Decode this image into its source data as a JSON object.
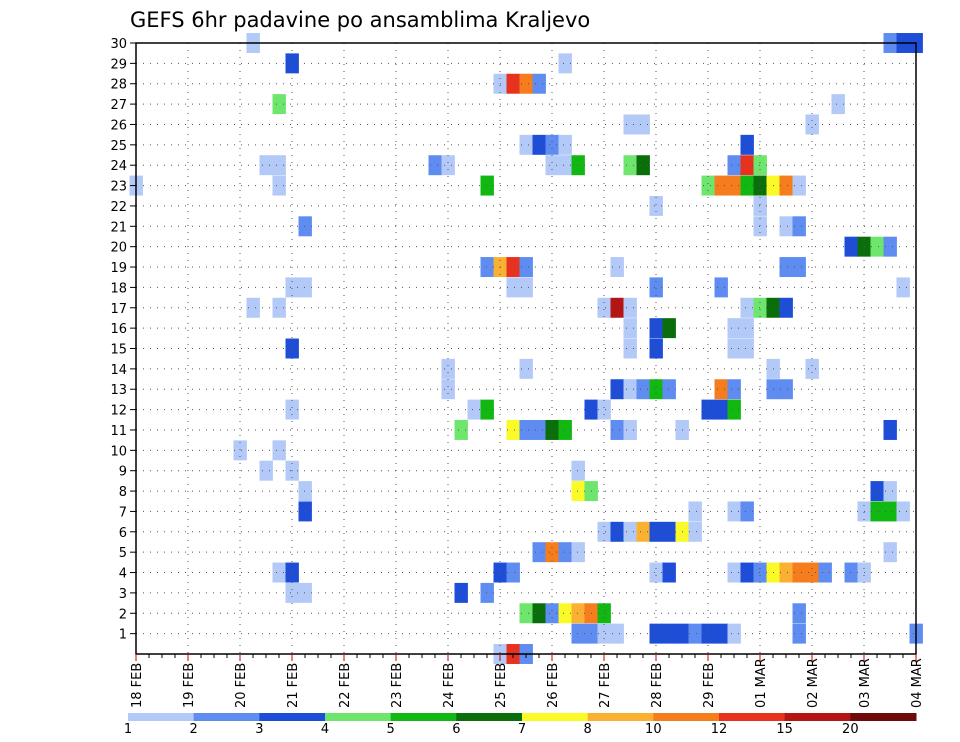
{
  "chart_data": {
    "type": "heatmap",
    "title": "GEFS 6hr padavine po ansamblima Kraljevo",
    "xlabel": "",
    "ylabel": "",
    "x_tick_labels": [
      "18 FEB",
      "19 FEB",
      "20 FEB",
      "21 FEB",
      "22 FEB",
      "23 FEB",
      "24 FEB",
      "25 FEB",
      "26 FEB",
      "27 FEB",
      "28 FEB",
      "29 FEB",
      "01 MAR",
      "02 MAR",
      "03 MAR",
      "04 MAR"
    ],
    "y_tick_labels": [
      "1",
      "2",
      "3",
      "4",
      "5",
      "6",
      "7",
      "8",
      "9",
      "10",
      "11",
      "12",
      "13",
      "14",
      "15",
      "16",
      "17",
      "18",
      "19",
      "20",
      "21",
      "22",
      "23",
      "24",
      "25",
      "26",
      "27",
      "28",
      "29",
      "30"
    ],
    "x_range_steps": [
      0,
      60
    ],
    "y_range": [
      0,
      30
    ],
    "grid": true,
    "colorbar": {
      "tick_labels": [
        "1",
        "2",
        "3",
        "4",
        "5",
        "6",
        "7",
        "8",
        "10",
        "12",
        "15",
        "20"
      ],
      "colors": [
        "#b3c9f7",
        "#5f8cf0",
        "#1e4ed8",
        "#6ee66e",
        "#12b812",
        "#0a6e0a",
        "#fafa28",
        "#fab132",
        "#f57d1e",
        "#e8321e",
        "#b41414",
        "#6e0a0a"
      ]
    },
    "member_cells": {
      "0": [
        [
          28,
          1
        ],
        [
          29,
          10
        ],
        [
          30,
          2
        ]
      ],
      "1": [
        [
          34,
          2
        ],
        [
          35,
          2
        ],
        [
          36,
          1
        ],
        [
          37,
          1
        ],
        [
          40,
          3
        ],
        [
          41,
          3
        ],
        [
          42,
          3
        ],
        [
          43,
          2
        ],
        [
          44,
          3
        ],
        [
          45,
          3
        ],
        [
          46,
          1
        ],
        [
          51,
          2
        ],
        [
          60,
          2
        ]
      ],
      "2": [
        [
          30,
          4
        ],
        [
          31,
          6
        ],
        [
          32,
          2
        ],
        [
          33,
          7
        ],
        [
          34,
          8
        ],
        [
          35,
          9
        ],
        [
          36,
          5
        ],
        [
          51,
          2
        ]
      ],
      "3": [
        [
          12,
          1
        ],
        [
          13,
          1
        ],
        [
          25,
          3
        ],
        [
          27,
          2
        ]
      ],
      "4": [
        [
          11,
          1
        ],
        [
          12,
          3
        ],
        [
          28,
          3
        ],
        [
          29,
          2
        ],
        [
          40,
          1
        ],
        [
          41,
          3
        ],
        [
          46,
          1
        ],
        [
          47,
          3
        ],
        [
          48,
          2
        ],
        [
          49,
          7
        ],
        [
          50,
          8
        ],
        [
          51,
          9
        ],
        [
          52,
          9
        ],
        [
          53,
          2
        ],
        [
          55,
          2
        ],
        [
          56,
          1
        ]
      ],
      "5": [
        [
          31,
          2
        ],
        [
          32,
          9
        ],
        [
          33,
          2
        ],
        [
          34,
          1
        ],
        [
          58,
          1
        ]
      ],
      "6": [
        [
          36,
          1
        ],
        [
          37,
          3
        ],
        [
          38,
          1
        ],
        [
          39,
          8
        ],
        [
          40,
          3
        ],
        [
          41,
          3
        ],
        [
          42,
          7
        ],
        [
          43,
          1
        ]
      ],
      "7": [
        [
          13,
          3
        ],
        [
          43,
          1
        ],
        [
          46,
          1
        ],
        [
          47,
          2
        ],
        [
          56,
          1
        ],
        [
          57,
          5
        ],
        [
          58,
          5
        ],
        [
          59,
          1
        ]
      ],
      "8": [
        [
          13,
          1
        ],
        [
          34,
          7
        ],
        [
          35,
          4
        ],
        [
          57,
          3
        ],
        [
          58,
          1
        ]
      ],
      "9": [
        [
          10,
          1
        ],
        [
          12,
          1
        ],
        [
          34,
          1
        ]
      ],
      "10": [
        [
          8,
          1
        ],
        [
          11,
          1
        ]
      ],
      "11": [
        [
          25,
          4
        ],
        [
          29,
          7
        ],
        [
          30,
          2
        ],
        [
          31,
          2
        ],
        [
          32,
          6
        ],
        [
          33,
          5
        ],
        [
          37,
          2
        ],
        [
          38,
          1
        ],
        [
          42,
          1
        ],
        [
          58,
          3
        ]
      ],
      "12": [
        [
          12,
          1
        ],
        [
          26,
          1
        ],
        [
          27,
          5
        ],
        [
          35,
          3
        ],
        [
          36,
          1
        ],
        [
          44,
          3
        ],
        [
          45,
          3
        ],
        [
          46,
          5
        ]
      ],
      "13": [
        [
          24,
          1
        ],
        [
          37,
          3
        ],
        [
          38,
          1
        ],
        [
          39,
          2
        ],
        [
          40,
          5
        ],
        [
          41,
          2
        ],
        [
          45,
          9
        ],
        [
          46,
          2
        ],
        [
          49,
          2
        ],
        [
          50,
          2
        ]
      ],
      "14": [
        [
          24,
          1
        ],
        [
          30,
          1
        ],
        [
          49,
          1
        ],
        [
          52,
          1
        ]
      ],
      "15": [
        [
          12,
          3
        ],
        [
          38,
          1
        ],
        [
          40,
          3
        ],
        [
          46,
          1
        ],
        [
          47,
          1
        ]
      ],
      "16": [
        [
          38,
          1
        ],
        [
          40,
          3
        ],
        [
          41,
          6
        ],
        [
          46,
          1
        ],
        [
          47,
          1
        ]
      ],
      "17": [
        [
          9,
          1
        ],
        [
          11,
          1
        ],
        [
          36,
          1
        ],
        [
          37,
          11
        ],
        [
          38,
          1
        ],
        [
          47,
          1
        ],
        [
          48,
          4
        ],
        [
          49,
          6
        ],
        [
          50,
          3
        ]
      ],
      "18": [
        [
          12,
          1
        ],
        [
          13,
          1
        ],
        [
          29,
          1
        ],
        [
          30,
          1
        ],
        [
          40,
          2
        ],
        [
          45,
          2
        ],
        [
          59,
          1
        ]
      ],
      "19": [
        [
          27,
          2
        ],
        [
          28,
          8
        ],
        [
          29,
          10
        ],
        [
          30,
          2
        ],
        [
          37,
          1
        ],
        [
          50,
          2
        ],
        [
          51,
          2
        ]
      ],
      "20": [
        [
          55,
          3
        ],
        [
          56,
          6
        ],
        [
          57,
          4
        ],
        [
          58,
          2
        ]
      ],
      "21": [
        [
          13,
          2
        ],
        [
          48,
          1
        ],
        [
          50,
          1
        ],
        [
          51,
          2
        ]
      ],
      "22": [
        [
          40,
          1
        ],
        [
          48,
          1
        ]
      ],
      "23": [
        [
          0,
          1
        ],
        [
          11,
          1
        ],
        [
          27,
          5
        ],
        [
          44,
          4
        ],
        [
          45,
          9
        ],
        [
          46,
          9
        ],
        [
          47,
          5
        ],
        [
          48,
          6
        ],
        [
          49,
          7
        ],
        [
          50,
          9
        ],
        [
          51,
          1
        ]
      ],
      "24": [
        [
          10,
          1
        ],
        [
          11,
          1
        ],
        [
          23,
          2
        ],
        [
          24,
          1
        ],
        [
          32,
          1
        ],
        [
          33,
          1
        ],
        [
          34,
          5
        ],
        [
          38,
          4
        ],
        [
          39,
          6
        ],
        [
          46,
          2
        ],
        [
          47,
          10
        ],
        [
          48,
          4
        ]
      ],
      "25": [
        [
          30,
          1
        ],
        [
          31,
          3
        ],
        [
          32,
          2
        ],
        [
          33,
          1
        ],
        [
          47,
          3
        ]
      ],
      "26": [
        [
          38,
          1
        ],
        [
          39,
          1
        ],
        [
          52,
          1
        ]
      ],
      "27": [
        [
          11,
          4
        ],
        [
          54,
          1
        ]
      ],
      "28": [
        [
          28,
          1
        ],
        [
          29,
          10
        ],
        [
          30,
          9
        ],
        [
          31,
          2
        ]
      ],
      "29": [
        [
          12,
          3
        ],
        [
          33,
          1
        ]
      ],
      "30": [
        [
          9,
          1
        ],
        [
          58,
          2
        ],
        [
          59,
          3
        ],
        [
          60,
          3
        ]
      ]
    }
  }
}
